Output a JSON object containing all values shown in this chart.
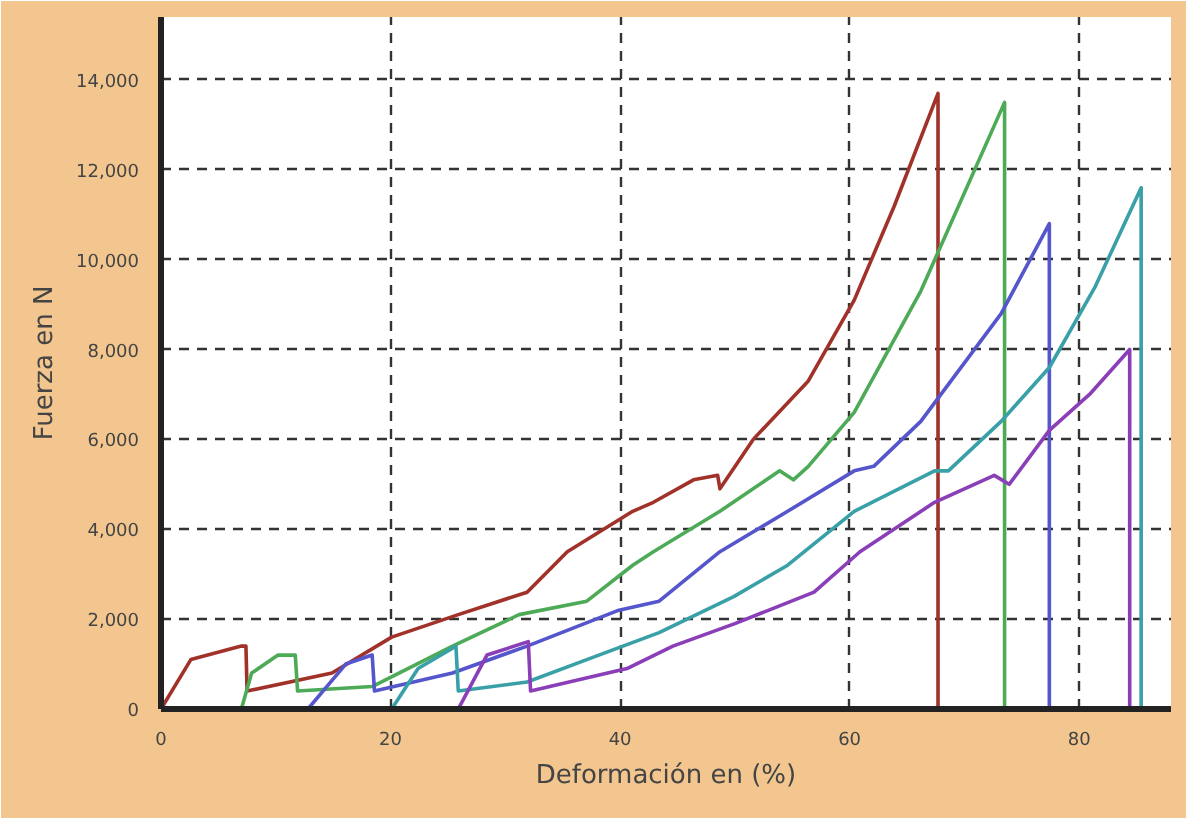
{
  "chart_data": {
    "type": "line",
    "xlabel": "Deformación en (%)",
    "ylabel": "Fuerza en N",
    "xlim": [
      0,
      88
    ],
    "ylim": [
      0,
      15400
    ],
    "xticks": [
      0,
      20,
      40,
      60,
      80
    ],
    "yticks": [
      {
        "value": 0,
        "label": "0"
      },
      {
        "value": 2000,
        "label": "2,000"
      },
      {
        "value": 4000,
        "label": "4,000"
      },
      {
        "value": 6000,
        "label": "6,000"
      },
      {
        "value": 8000,
        "label": "8,000"
      },
      {
        "value": 10000,
        "label": "10,000"
      },
      {
        "value": 12000,
        "label": "12,000"
      },
      {
        "value": 14000,
        "label": "14,000"
      }
    ],
    "grid": true,
    "line_style": "solid",
    "series": [
      {
        "color": "#a0322a",
        "x": [
          0,
          2.6,
          7,
          7.4,
          7.5,
          14.9,
          20.1,
          25.9,
          31.9,
          35.4,
          41.1,
          42.9,
          46.4,
          48.5,
          48.7,
          51.6,
          56.4,
          60.4,
          63.9,
          67.7,
          67.7
        ],
        "values": [
          0,
          1100,
          1400,
          1400,
          400,
          800,
          1600,
          2100,
          2600,
          3500,
          4400,
          4600,
          5100,
          5200,
          4900,
          6000,
          7300,
          9100,
          11200,
          13700,
          0
        ]
      },
      {
        "color": "#4daa57",
        "x": [
          7,
          7.9,
          10.2,
          11.7,
          11.9,
          18.4,
          25.4,
          31.2,
          37.1,
          41.1,
          42.9,
          48.7,
          53.9,
          55.1,
          56.4,
          60.4,
          66.2,
          73.5,
          73.5
        ],
        "values": [
          0,
          800,
          1200,
          1200,
          400,
          500,
          1400,
          2100,
          2400,
          3200,
          3500,
          4400,
          5300,
          5100,
          5400,
          6600,
          9300,
          13500,
          0
        ]
      },
      {
        "color": "#5555cc",
        "x": [
          12.8,
          16.1,
          18.4,
          18.6,
          25.4,
          31.9,
          39.9,
          43.4,
          48.7,
          54.6,
          60.4,
          62.1,
          66.2,
          73.2,
          77.4,
          77.4
        ],
        "values": [
          0,
          1000,
          1200,
          400,
          800,
          1400,
          2200,
          2400,
          3500,
          4400,
          5300,
          5400,
          6400,
          8800,
          10800,
          0
        ]
      },
      {
        "color": "#3aa0a8",
        "x": [
          20.1,
          22.4,
          25.7,
          25.9,
          31.9,
          37.1,
          43.4,
          49.9,
          54.6,
          60.4,
          67.4,
          68.6,
          73.2,
          77.4,
          81.4,
          85.4,
          85.4
        ],
        "values": [
          0,
          900,
          1400,
          400,
          600,
          1100,
          1700,
          2500,
          3200,
          4400,
          5300,
          5300,
          6400,
          7600,
          9400,
          11600,
          0
        ]
      },
      {
        "color": "#8a3fb8",
        "x": [
          25.9,
          28.4,
          32,
          32.2,
          40.6,
          44.6,
          50,
          56.9,
          60.9,
          67.4,
          72.6,
          73.9,
          77.4,
          80.9,
          84.4,
          84.4
        ],
        "values": [
          0,
          1200,
          1500,
          400,
          900,
          1400,
          1900,
          2600,
          3500,
          4600,
          5200,
          5000,
          6200,
          7000,
          8000,
          0
        ]
      }
    ]
  }
}
